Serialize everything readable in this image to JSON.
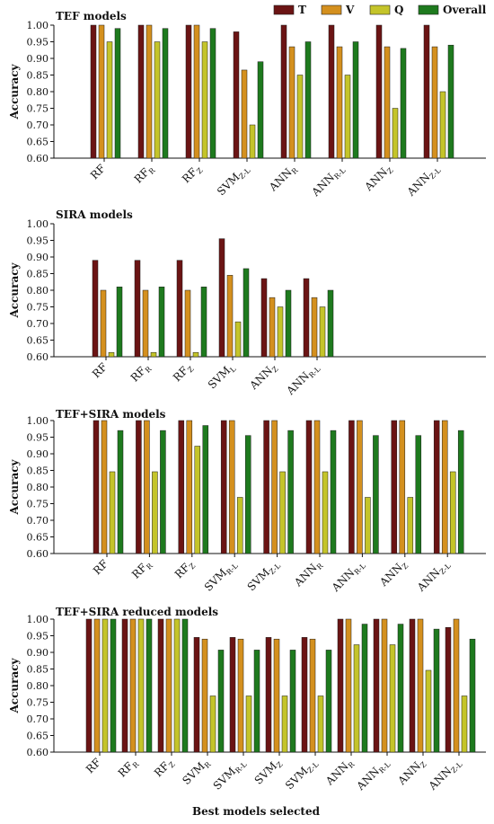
{
  "legend": [
    {
      "label": "T",
      "color": "#6b1414"
    },
    {
      "label": "V",
      "color": "#d4901e"
    },
    {
      "label": "Q",
      "color": "#c4c42a"
    },
    {
      "label": "Overall",
      "color": "#1e7a1e"
    }
  ],
  "xlabel": "Best models selected",
  "chart_data": [
    {
      "type": "bar",
      "title": "TEF models",
      "ylabel": "Accuracy",
      "ylim": [
        0.6,
        1.0
      ],
      "yticks": [
        "0.60",
        "0.65",
        "0.70",
        "0.75",
        "0.80",
        "0.85",
        "0.90",
        "0.95",
        "1.00"
      ],
      "categories": [
        {
          "base": "RF",
          "sub": ""
        },
        {
          "base": "RF",
          "sub": "R"
        },
        {
          "base": "RF",
          "sub": "Z"
        },
        {
          "base": "SVM",
          "sub": "Z-L"
        },
        {
          "base": "ANN",
          "sub": "R"
        },
        {
          "base": "ANN",
          "sub": "R-L"
        },
        {
          "base": "ANN",
          "sub": "Z"
        },
        {
          "base": "ANN",
          "sub": "Z-L"
        }
      ],
      "series": [
        {
          "name": "T",
          "values": [
            1.0,
            1.0,
            1.0,
            0.98,
            1.0,
            1.0,
            1.0,
            1.0
          ]
        },
        {
          "name": "V",
          "values": [
            1.0,
            1.0,
            1.0,
            0.865,
            0.935,
            0.935,
            0.935,
            0.935
          ]
        },
        {
          "name": "Q",
          "values": [
            0.95,
            0.95,
            0.95,
            0.7,
            0.85,
            0.85,
            0.75,
            0.8
          ]
        },
        {
          "name": "Overall",
          "values": [
            0.99,
            0.99,
            0.99,
            0.89,
            0.95,
            0.95,
            0.93,
            0.94
          ]
        }
      ]
    },
    {
      "type": "bar",
      "title": "SIRA models",
      "ylabel": "Accuracy",
      "ylim": [
        0.6,
        1.0
      ],
      "yticks": [
        "0.60",
        "0.65",
        "0.70",
        "0.75",
        "0.80",
        "0.85",
        "0.90",
        "0.95",
        "1.00"
      ],
      "categories": [
        {
          "base": "RF",
          "sub": ""
        },
        {
          "base": "RF",
          "sub": "R"
        },
        {
          "base": "RF",
          "sub": "Z"
        },
        {
          "base": "SVM",
          "sub": "L"
        },
        {
          "base": "ANN",
          "sub": "Z"
        },
        {
          "base": "ANN",
          "sub": "R-L"
        }
      ],
      "series": [
        {
          "name": "T",
          "values": [
            0.89,
            0.89,
            0.89,
            0.955,
            0.835,
            0.835
          ]
        },
        {
          "name": "V",
          "values": [
            0.8,
            0.8,
            0.8,
            0.845,
            0.778,
            0.778
          ]
        },
        {
          "name": "Q",
          "values": [
            0.613,
            0.613,
            0.613,
            0.705,
            0.75,
            0.75
          ]
        },
        {
          "name": "Overall",
          "values": [
            0.81,
            0.81,
            0.81,
            0.865,
            0.8,
            0.8
          ]
        }
      ]
    },
    {
      "type": "bar",
      "title": "TEF+SIRA models",
      "ylabel": "Accuracy",
      "ylim": [
        0.6,
        1.0
      ],
      "yticks": [
        "0.60",
        "0.65",
        "0.70",
        "0.75",
        "0.80",
        "0.85",
        "0.90",
        "0.95",
        "1.00"
      ],
      "categories": [
        {
          "base": "RF",
          "sub": ""
        },
        {
          "base": "RF",
          "sub": "R"
        },
        {
          "base": "RF",
          "sub": "Z"
        },
        {
          "base": "SVM",
          "sub": "R-L"
        },
        {
          "base": "SVM",
          "sub": "Z-L"
        },
        {
          "base": "ANN",
          "sub": "R"
        },
        {
          "base": "ANN",
          "sub": "R-L"
        },
        {
          "base": "ANN",
          "sub": "Z"
        },
        {
          "base": "ANN",
          "sub": "Z-L"
        }
      ],
      "series": [
        {
          "name": "T",
          "values": [
            1.0,
            1.0,
            1.0,
            1.0,
            1.0,
            1.0,
            1.0,
            1.0,
            1.0
          ]
        },
        {
          "name": "V",
          "values": [
            1.0,
            1.0,
            1.0,
            1.0,
            1.0,
            1.0,
            1.0,
            1.0,
            1.0
          ]
        },
        {
          "name": "Q",
          "values": [
            0.846,
            0.846,
            0.923,
            0.769,
            0.846,
            0.846,
            0.769,
            0.769,
            0.846
          ]
        },
        {
          "name": "Overall",
          "values": [
            0.97,
            0.97,
            0.985,
            0.955,
            0.97,
            0.97,
            0.955,
            0.955,
            0.97
          ]
        }
      ]
    },
    {
      "type": "bar",
      "title": "TEF+SIRA reduced models",
      "ylabel": "Accuracy",
      "ylim": [
        0.6,
        1.0
      ],
      "yticks": [
        "0.60",
        "0.65",
        "0.70",
        "0.75",
        "0.80",
        "0.85",
        "0.90",
        "0.95",
        "1.00"
      ],
      "categories": [
        {
          "base": "RF",
          "sub": ""
        },
        {
          "base": "RF",
          "sub": "R"
        },
        {
          "base": "RF",
          "sub": "Z"
        },
        {
          "base": "SVM",
          "sub": "R"
        },
        {
          "base": "SVM",
          "sub": "R-L"
        },
        {
          "base": "SVM",
          "sub": "Z"
        },
        {
          "base": "SVM",
          "sub": "Z-L"
        },
        {
          "base": "ANN",
          "sub": "R"
        },
        {
          "base": "ANN",
          "sub": "R-L"
        },
        {
          "base": "ANN",
          "sub": "Z"
        },
        {
          "base": "ANN",
          "sub": "Z-L"
        }
      ],
      "series": [
        {
          "name": "T",
          "values": [
            1.0,
            1.0,
            1.0,
            0.945,
            0.945,
            0.945,
            0.945,
            1.0,
            1.0,
            1.0,
            0.975
          ]
        },
        {
          "name": "V",
          "values": [
            1.0,
            1.0,
            1.0,
            0.94,
            0.94,
            0.94,
            0.94,
            1.0,
            1.0,
            1.0,
            1.0
          ]
        },
        {
          "name": "Q",
          "values": [
            1.0,
            1.0,
            1.0,
            0.769,
            0.769,
            0.769,
            0.769,
            0.923,
            0.923,
            0.846,
            0.769
          ]
        },
        {
          "name": "Overall",
          "values": [
            1.0,
            1.0,
            1.0,
            0.907,
            0.907,
            0.907,
            0.907,
            0.985,
            0.985,
            0.97,
            0.94
          ]
        }
      ]
    }
  ]
}
